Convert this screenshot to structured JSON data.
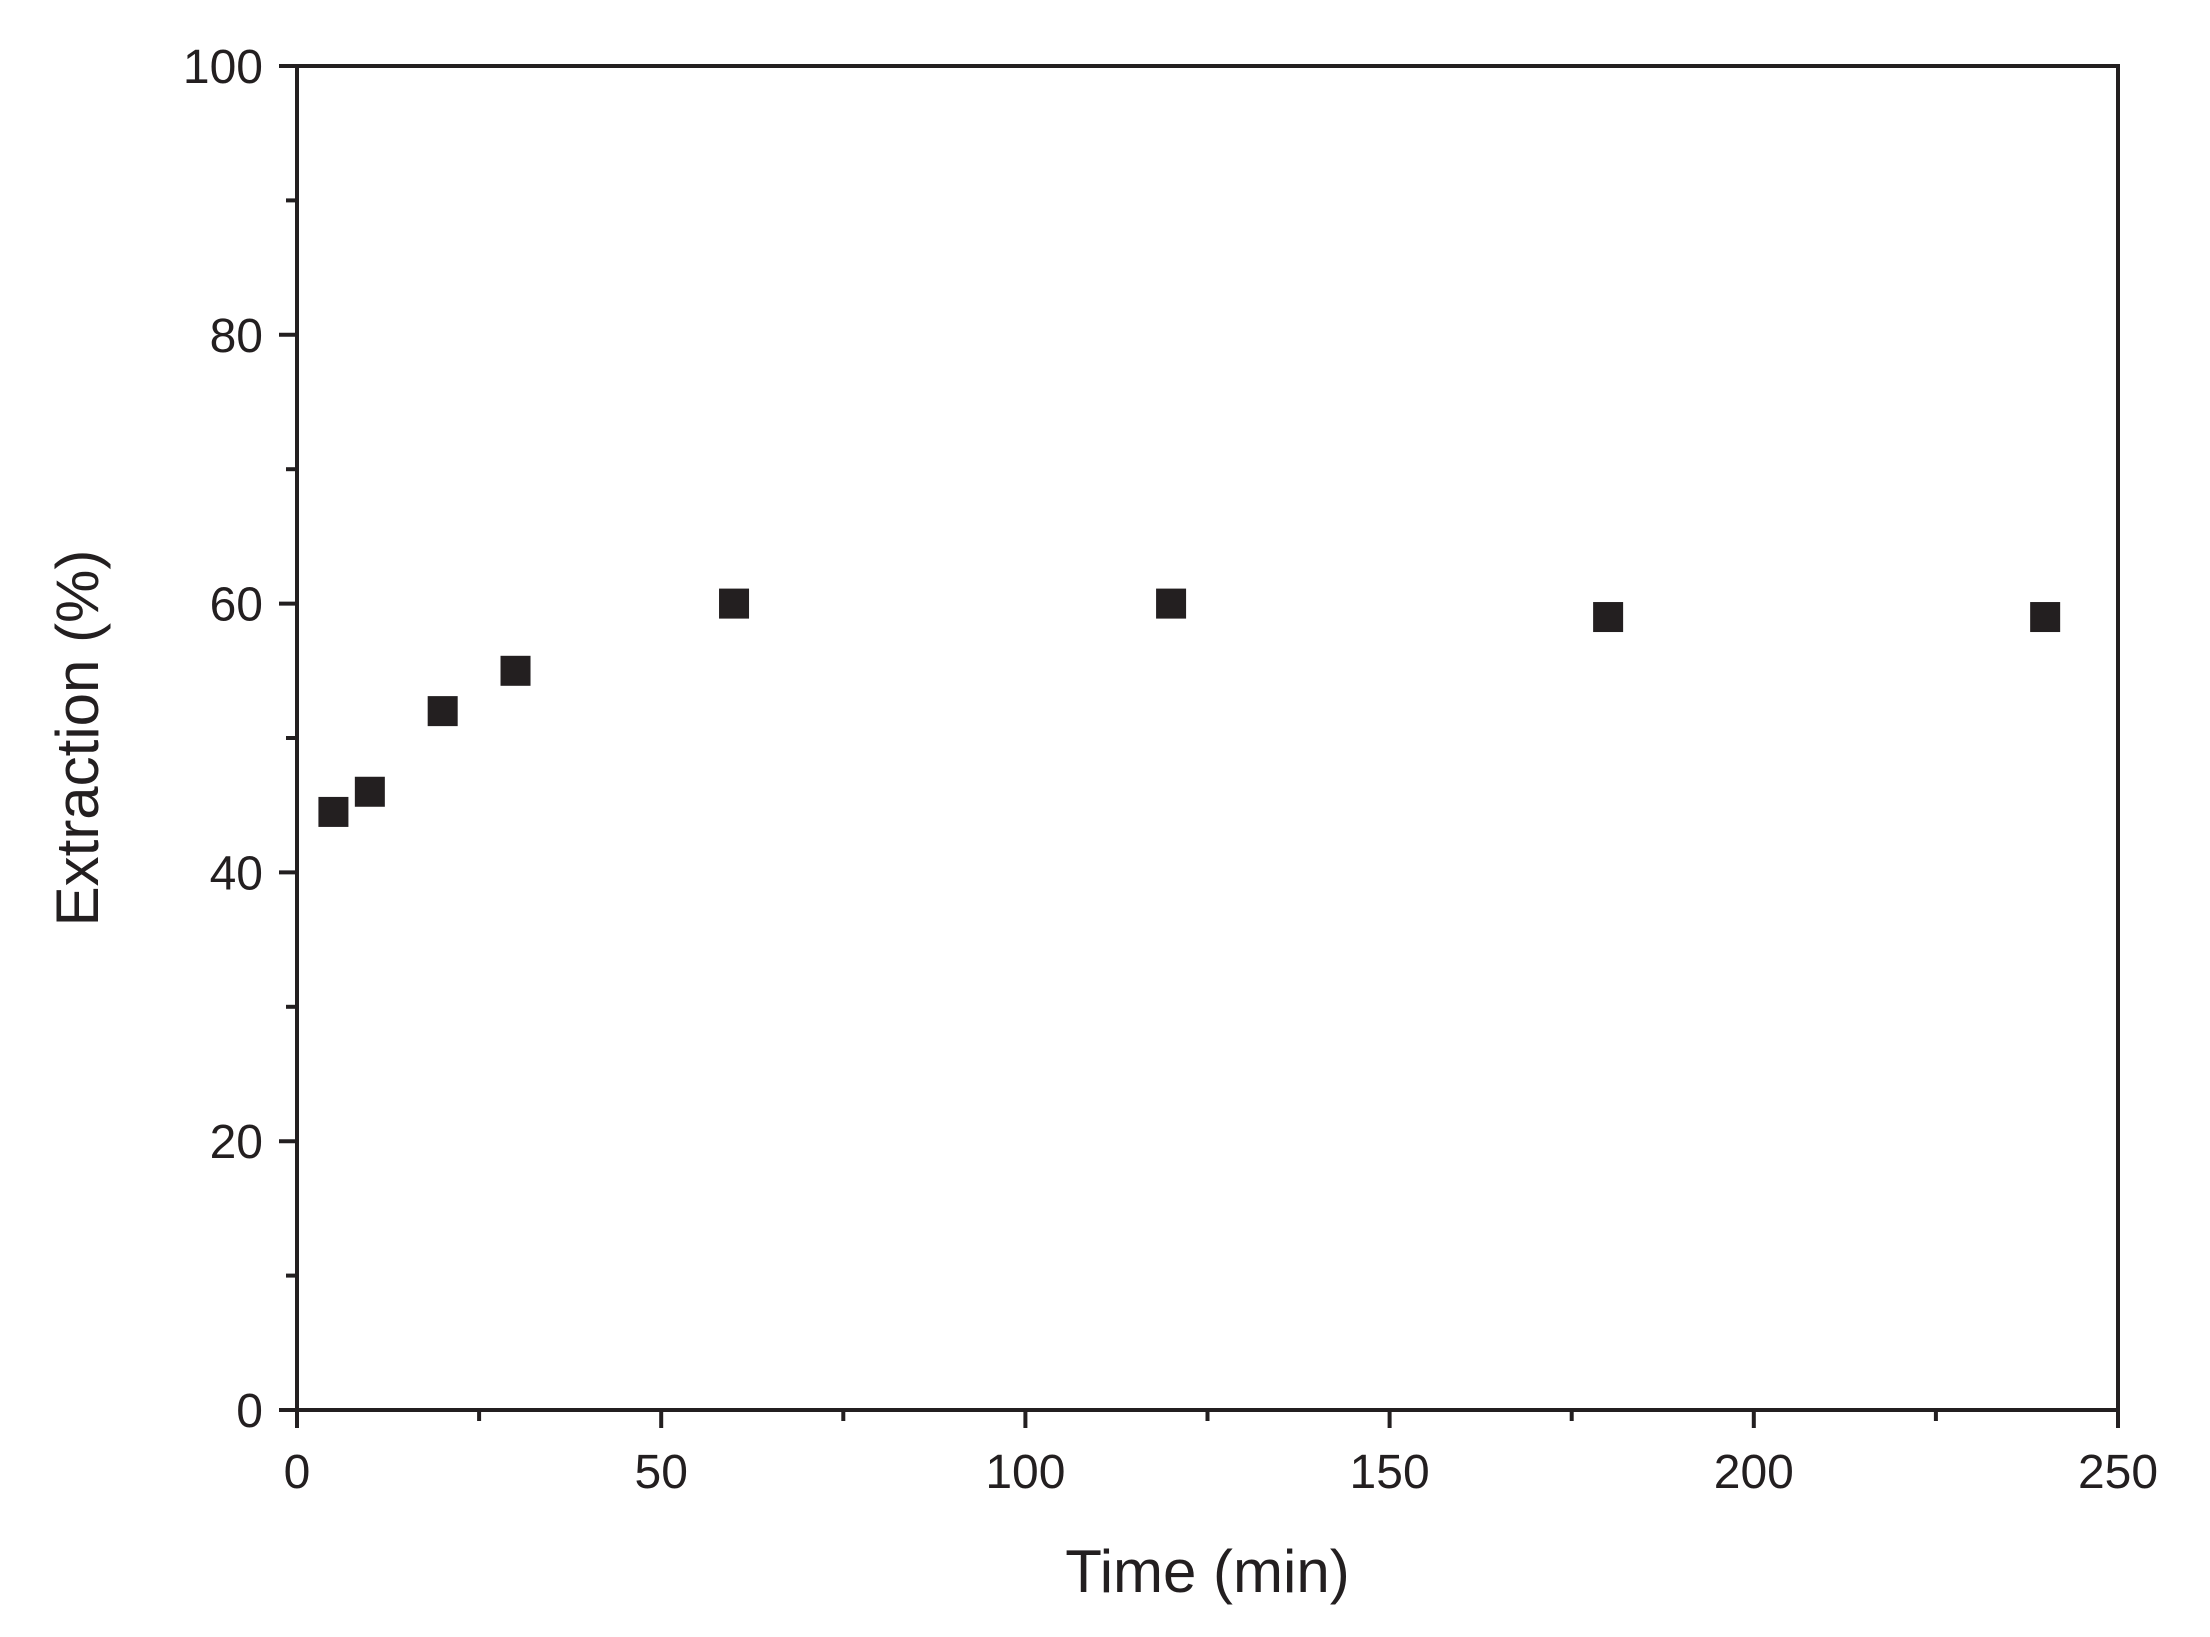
{
  "chart_data": {
    "type": "scatter",
    "title": "",
    "xlabel": "Time (min)",
    "ylabel": "Extraction (%)",
    "xlim": [
      0,
      250
    ],
    "ylim": [
      0,
      100
    ],
    "x_ticks": [
      0,
      50,
      100,
      150,
      200,
      250
    ],
    "x_minor_ticks": [
      25,
      75,
      125,
      175,
      225
    ],
    "y_ticks": [
      0,
      20,
      40,
      60,
      80,
      100
    ],
    "y_minor_ticks": [
      10,
      30,
      50,
      70,
      90
    ],
    "grid": false,
    "legend": "none",
    "marker": "square",
    "series": [
      {
        "x": [
          5,
          10,
          20,
          30,
          60,
          120,
          180,
          240
        ],
        "y": [
          44.5,
          46,
          52,
          55,
          60,
          60,
          59,
          59
        ],
        "color": "#231f20"
      }
    ]
  }
}
